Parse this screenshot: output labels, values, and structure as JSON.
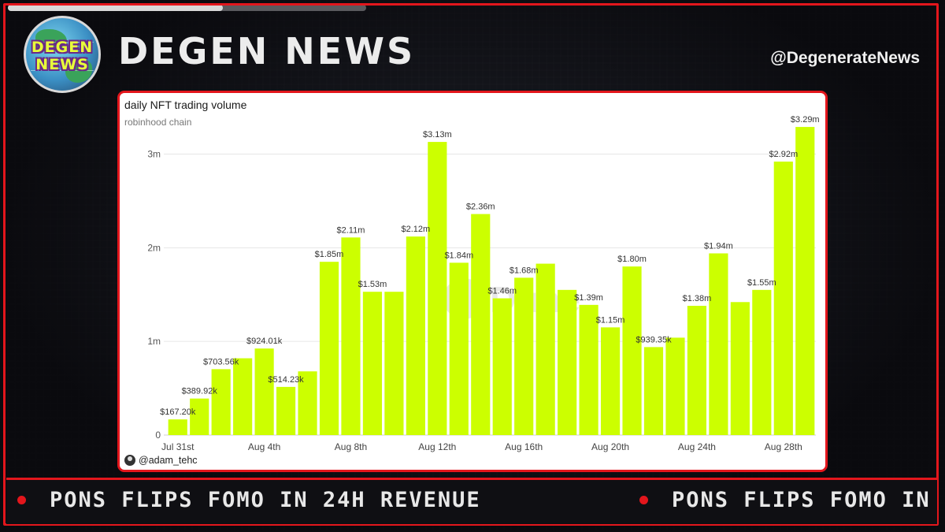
{
  "header": {
    "logo_text_top": "DEGEN",
    "logo_text_bottom": "NEWS",
    "brand": "DEGEN NEWS",
    "handle": "@DegenerateNews",
    "progress": 0.6
  },
  "card": {
    "author": "@adam_tehc"
  },
  "ticker": {
    "items": [
      "PONS FLIPS FOMO IN 24H REVENUE",
      "PONS FLIPS FOMO IN 24H REVENUE"
    ]
  },
  "colors": {
    "accent_red": "#e3161c",
    "bar": "#ccff00"
  },
  "chart_data": {
    "type": "bar",
    "title": "daily NFT trading volume",
    "subtitle": "robinhood chain",
    "watermark": "Dune",
    "ylim": [
      0,
      3400000
    ],
    "yticks": [
      0,
      1000000,
      2000000,
      3000000
    ],
    "ytick_labels": [
      "0",
      "1m",
      "2m",
      "3m"
    ],
    "xtick_labels": [
      {
        "index": 0,
        "label": "Jul 31st"
      },
      {
        "index": 4,
        "label": "Aug 4th"
      },
      {
        "index": 8,
        "label": "Aug 8th"
      },
      {
        "index": 12,
        "label": "Aug 12th"
      },
      {
        "index": 16,
        "label": "Aug 16th"
      },
      {
        "index": 20,
        "label": "Aug 20th"
      },
      {
        "index": 24,
        "label": "Aug 24th"
      },
      {
        "index": 28,
        "label": "Aug 28th"
      }
    ],
    "values": [
      167200,
      389920,
      703560,
      820000,
      924010,
      514230,
      680000,
      1850000,
      2110000,
      1530000,
      1530000,
      2120000,
      3130000,
      1840000,
      2360000,
      1460000,
      1680000,
      1830000,
      1550000,
      1390000,
      1150000,
      1800000,
      939350,
      1040000,
      1380000,
      1940000,
      1420000,
      1550000,
      2920000,
      3290000
    ],
    "labels": [
      "$167.20k",
      "$389.92k",
      "$703.56k",
      null,
      "$924.01k",
      "$514.23k",
      null,
      "$1.85m",
      "$2.11m",
      "$1.53m",
      null,
      "$2.12m",
      "$3.13m",
      "$1.84m",
      "$2.36m",
      "$1.46m",
      "$1.68m",
      null,
      null,
      "$1.39m",
      "$1.15m",
      "$1.80m",
      "$939.35k",
      null,
      "$1.38m",
      "$1.94m",
      null,
      "$1.55m",
      "$2.92m",
      "$3.29m"
    ],
    "grid": true,
    "legend": "none"
  }
}
